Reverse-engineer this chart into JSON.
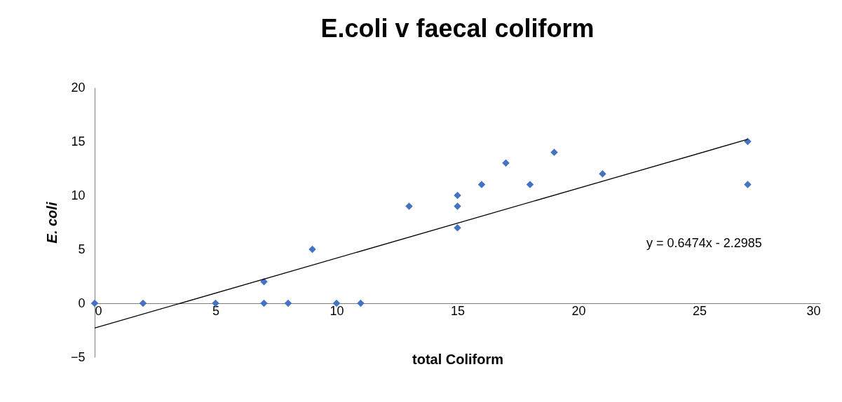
{
  "chart_data": {
    "type": "scatter",
    "title": "E.coli v faecal coliform",
    "xlabel": "total Coliform",
    "ylabel": "E. coli",
    "marker": "diamond",
    "xlim": [
      0,
      30
    ],
    "xticks": [
      0,
      5,
      10,
      15,
      20,
      25,
      30
    ],
    "ylim": [
      -5,
      20
    ],
    "yticks": [
      -5,
      0,
      5,
      10,
      15,
      20
    ],
    "annotations": [
      "y = 0.6474x - 2.2985"
    ],
    "series": [
      {
        "color": "#4472c4",
        "x": [
          0,
          2,
          5,
          7,
          7,
          8,
          9,
          10,
          11,
          13,
          15,
          15,
          15,
          16,
          17,
          18,
          19,
          21,
          27,
          27
        ],
        "values": [
          0,
          0,
          0,
          2,
          0,
          0,
          5,
          0,
          0,
          9,
          10,
          9,
          7,
          11,
          13,
          11,
          14,
          12,
          15,
          11
        ]
      },
      {
        "type": "line",
        "color": "#000000",
        "marker": "none",
        "x": [
          0,
          27
        ],
        "values": [
          -2.3,
          15.2
        ]
      }
    ]
  }
}
